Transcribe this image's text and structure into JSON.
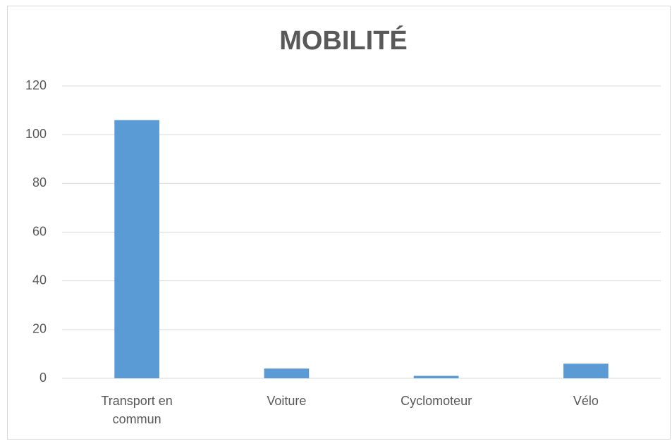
{
  "chart_data": {
    "type": "bar",
    "title": "MOBILITÉ",
    "categories": [
      "Transport en commun",
      "Voiture",
      "Cyclomoteur",
      "Vélo"
    ],
    "values": [
      106,
      4,
      1,
      6
    ],
    "color": "#5b9bd5",
    "ylim": [
      0,
      120
    ],
    "yticks": [
      0,
      20,
      40,
      60,
      80,
      100,
      120
    ],
    "grid": true
  }
}
